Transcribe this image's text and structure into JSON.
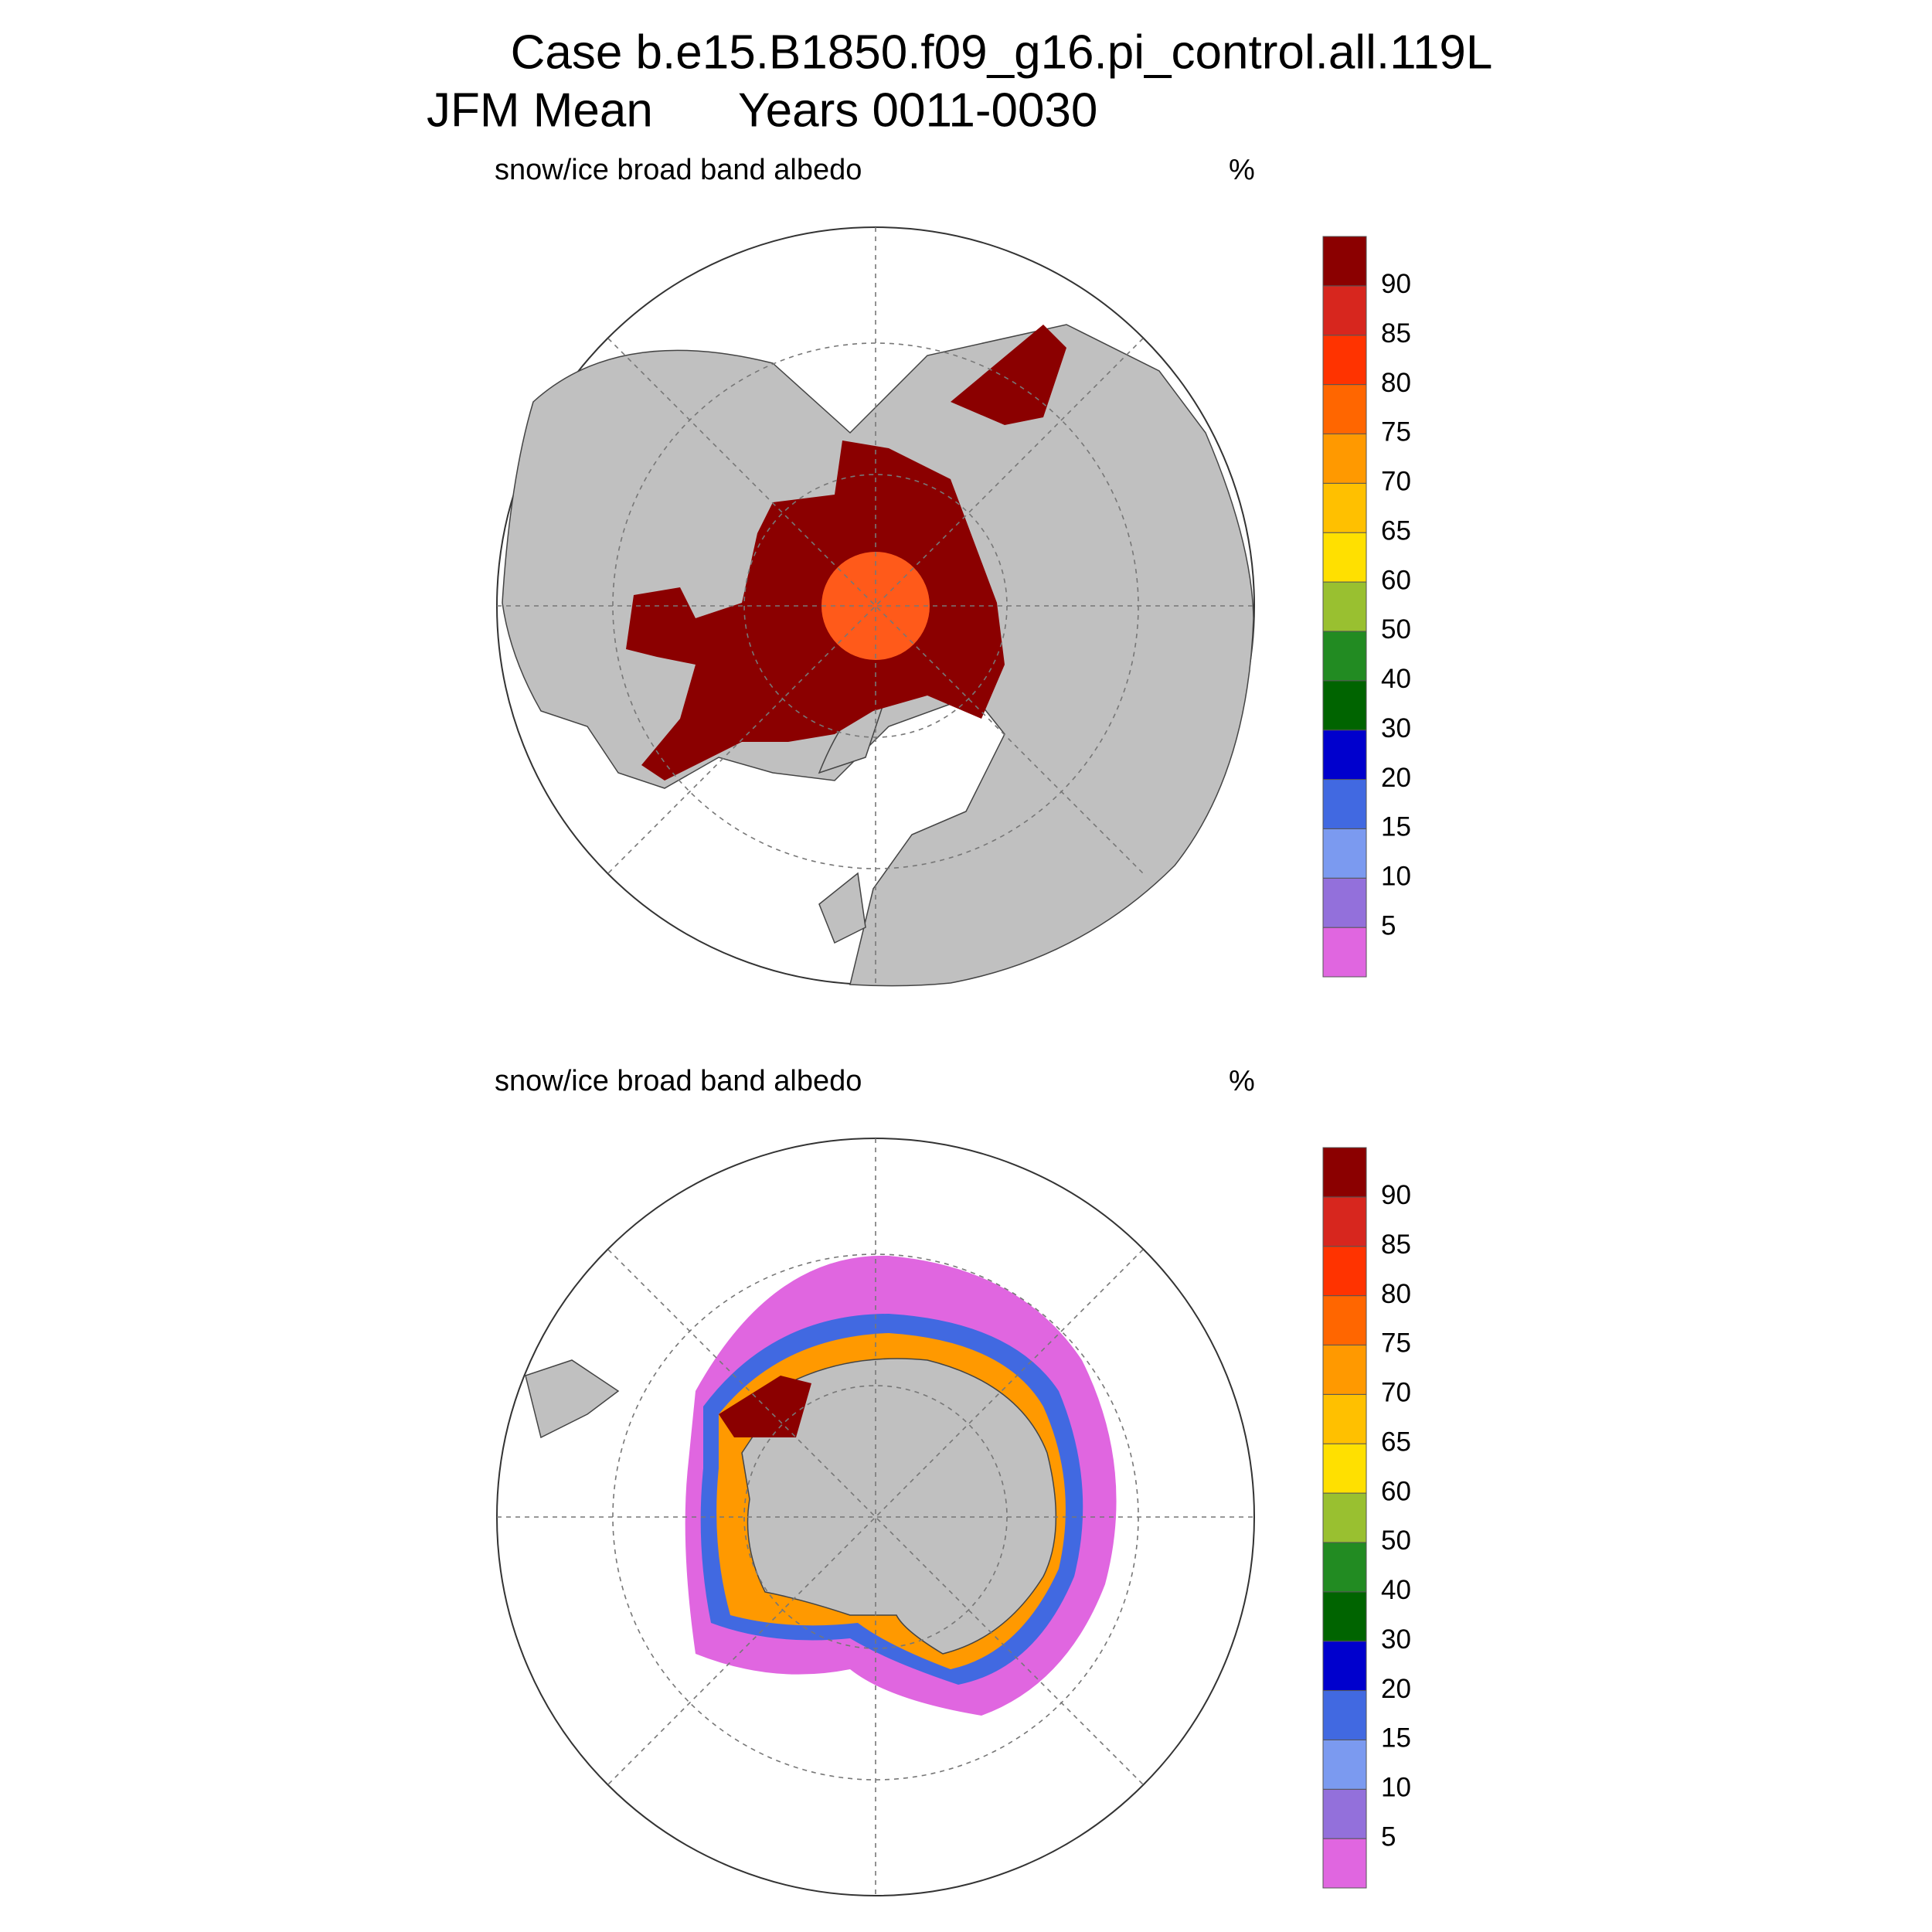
{
  "header": {
    "title": "Case b.e15.B1850.f09_g16.pi_control.all.119L",
    "season": "JFM Mean",
    "years": "Years 0011-0030"
  },
  "panels": [
    {
      "variable": "snow/ice broad band albedo",
      "units": "%"
    },
    {
      "variable": "snow/ice broad band albedo",
      "units": "%"
    }
  ],
  "colorbar": {
    "levels": [
      5,
      10,
      15,
      20,
      30,
      40,
      50,
      60,
      65,
      70,
      75,
      80,
      85,
      90
    ],
    "colors": [
      "#e066e0",
      "#9370db",
      "#7b9af0",
      "#4169e1",
      "#0000cd",
      "#006400",
      "#228b22",
      "#99c030",
      "#ffe000",
      "#ffc000",
      "#ff9900",
      "#ff6600",
      "#ff3300",
      "#d7261e",
      "#8b0000"
    ]
  }
}
